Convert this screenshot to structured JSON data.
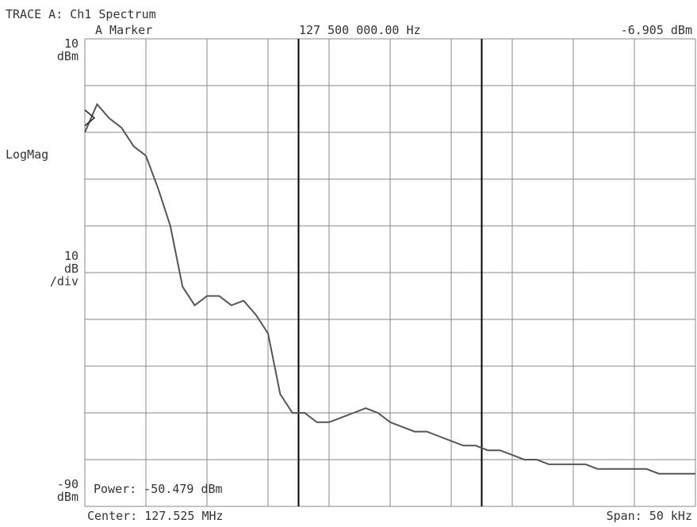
{
  "header": {
    "trace_title": "TRACE A: Ch1 Spectrum",
    "marker_label": "A Marker",
    "marker_frequency": "127 500 000.00 Hz",
    "marker_value": "-6.905 dBm"
  },
  "left_axis": {
    "top_value": "10",
    "top_unit": "dBm",
    "format": "LogMag",
    "scale_value": "10",
    "scale_unit": "dB",
    "scale_per": "/div",
    "bottom_value": "-90",
    "bottom_unit": "dBm"
  },
  "readouts": {
    "power": "Power: -50.479 dBm",
    "center": "Center: 127.525 MHz",
    "span": "Span: 50 kHz"
  },
  "colors": {
    "grid": "#888888",
    "trace": "#555555",
    "marker_line": "#000000",
    "text": "#333333"
  },
  "chart_data": {
    "type": "line",
    "xlabel": "",
    "ylabel": "",
    "xlim": [
      127.5,
      127.55
    ],
    "ylim": [
      -90,
      10
    ],
    "x_unit": "MHz",
    "y_unit": "dBm",
    "grid": true,
    "divisions": {
      "x": 10,
      "y": 10
    },
    "reference_marker": {
      "y": -6.905
    },
    "band_markers_x": [
      127.5175,
      127.5325
    ],
    "series": [
      {
        "x": [
          127.5,
          127.501,
          127.502,
          127.503,
          127.504,
          127.505,
          127.506,
          127.507,
          127.508,
          127.509,
          127.51,
          127.511,
          127.512,
          127.513,
          127.514,
          127.515,
          127.516,
          127.517,
          127.518,
          127.519,
          127.52,
          127.521,
          127.522,
          127.523,
          127.524,
          127.525,
          127.526,
          127.527,
          127.528,
          127.529,
          127.53,
          127.531,
          127.532,
          127.533,
          127.534,
          127.535,
          127.536,
          127.537,
          127.538,
          127.539,
          127.54,
          127.541,
          127.542,
          127.543,
          127.544,
          127.545,
          127.546,
          127.547,
          127.548,
          127.549,
          127.55
        ],
        "values": [
          -10,
          -4,
          -7,
          -9,
          -13,
          -15,
          -22,
          -30,
          -43,
          -47,
          -45,
          -45,
          -47,
          -46,
          -49,
          -53,
          -66,
          -70,
          -70,
          -72,
          -72,
          -71,
          -70,
          -69,
          -70,
          -72,
          -73,
          -74,
          -74,
          -75,
          -76,
          -77,
          -77,
          -78,
          -78,
          -79,
          -80,
          -80,
          -81,
          -81,
          -81,
          -81,
          -82,
          -82,
          -82,
          -82,
          -82,
          -83,
          -83,
          -83,
          -83
        ]
      }
    ]
  }
}
